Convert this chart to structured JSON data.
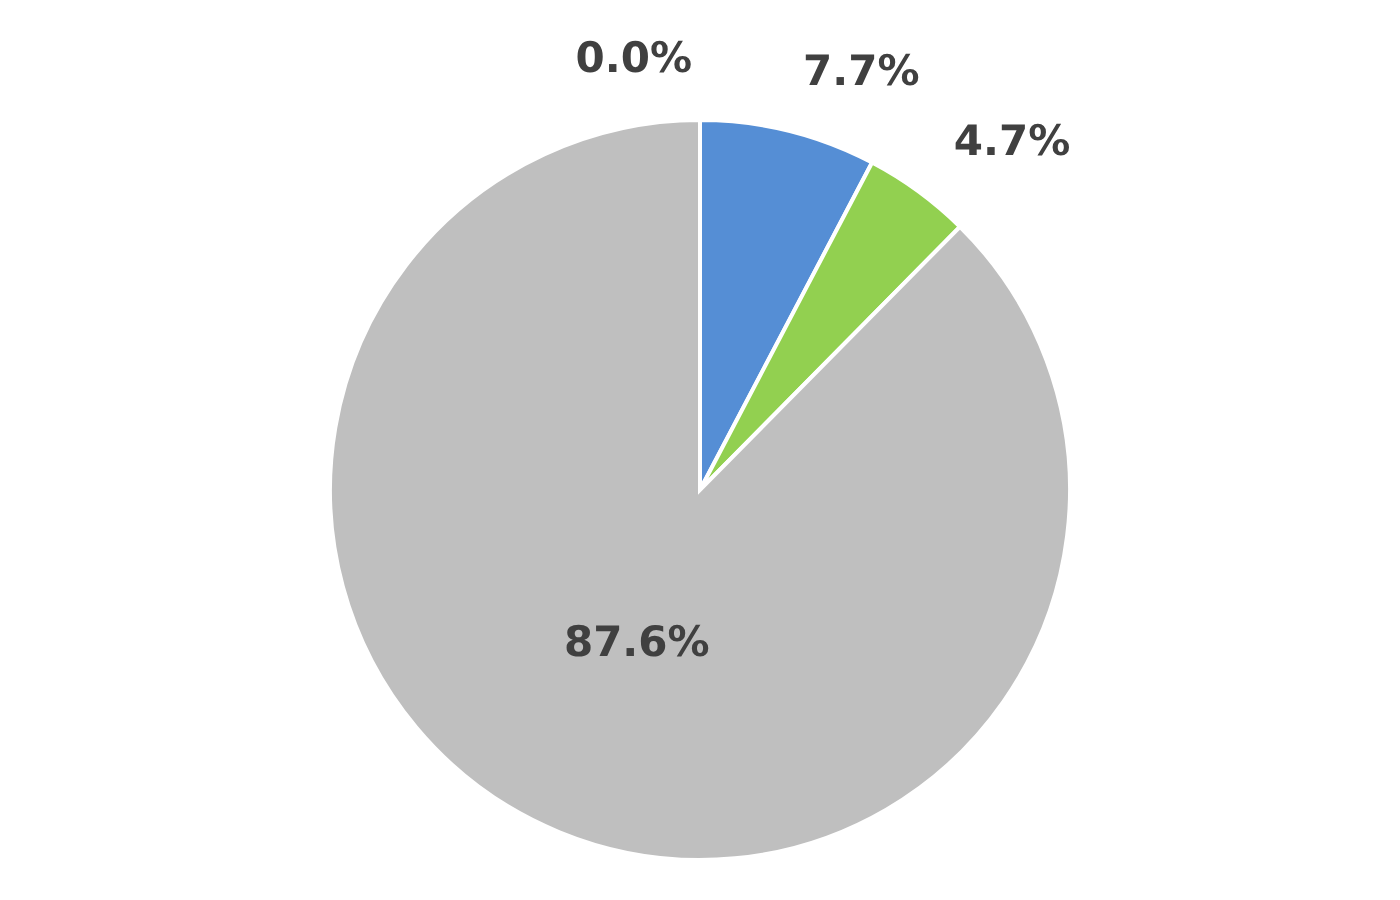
{
  "chart_data": {
    "type": "pie",
    "categories": [
      null,
      null,
      null,
      null
    ],
    "values": [
      0.0,
      7.7,
      4.7,
      87.6
    ],
    "colors": [
      "#ed7d31",
      "#558ed5",
      "#92d050",
      "#bfbfbf"
    ],
    "value_labels": [
      "0.0%",
      "7.7%",
      "4.7%",
      "87.6%"
    ],
    "legend": false
  }
}
